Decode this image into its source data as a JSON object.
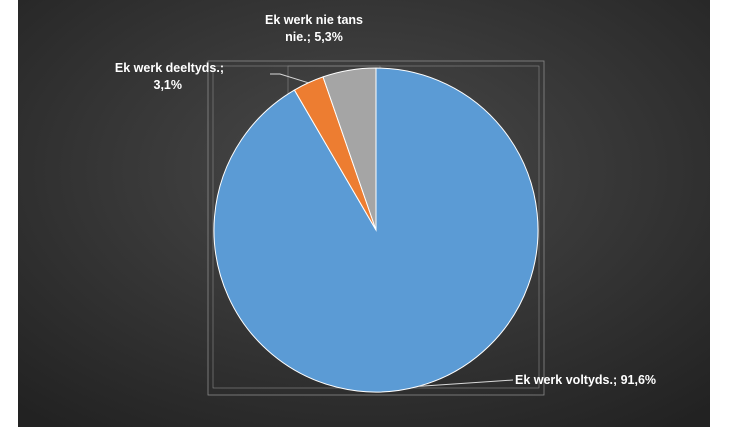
{
  "chart_data": {
    "type": "pie",
    "title": "",
    "categories": [
      "Ek werk voltyds.",
      "Ek werk deeltyds.",
      "Ek werk nie tans nie."
    ],
    "values": [
      91.6,
      3.1,
      5.3
    ],
    "unit": "%",
    "colors": [
      "#5b9bd5",
      "#ed7d31",
      "#a5a5a5"
    ],
    "labels": [
      {
        "lines": [
          "Ek werk voltyds.; 91,6%"
        ]
      },
      {
        "lines": [
          "Ek werk deeltyds.;",
          "3,1%"
        ]
      },
      {
        "lines": [
          "Ek werk nie tans",
          "nie.; 5,3%"
        ]
      }
    ],
    "background": "#3a3a3a",
    "legend": "none",
    "start_angle_deg": 0,
    "direction": "clockwise"
  }
}
